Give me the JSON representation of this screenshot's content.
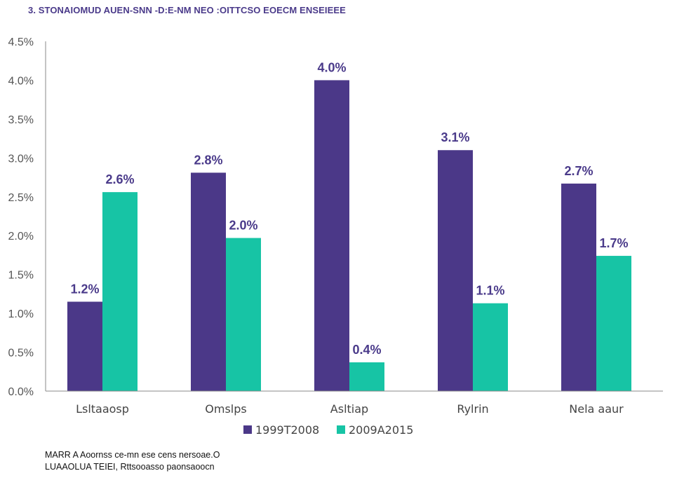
{
  "title": "3. STONAIOMUD AUEN-SNN -D:E-NM NEO :OITTCSO EOECM ENSEIEEE",
  "source_lines": [
    "MARR A Aoornss ce-mn ese cens nersoae.O",
    "LUAAOLUA TEIEI, Rttsooasso paonsaoocn"
  ],
  "chart_data": {
    "type": "bar",
    "categories": [
      "Lsltaaosp",
      "Omslps",
      "Asltiap",
      "Rylrin",
      "Nela aaur"
    ],
    "series": [
      {
        "name": "1999T2008",
        "color": "#4b3888",
        "values": [
          1.15,
          2.81,
          4.0,
          3.1,
          2.67
        ]
      },
      {
        "name": "2009A2015",
        "color": "#17c4a5",
        "values": [
          2.56,
          1.97,
          0.37,
          1.13,
          1.74
        ]
      }
    ],
    "data_labels": [
      [
        "1.2%",
        "2.8%",
        "4.0%",
        "3.1%",
        "2.7%"
      ],
      [
        "2.6%",
        "2.0%",
        "0.4%",
        "1.1%",
        "1.7%"
      ]
    ],
    "y_ticks": [
      "0.0%",
      "0.5%",
      "1.0%",
      "1.5%",
      "2.0%",
      "2.5%",
      "3.0%",
      "3.5%",
      "4.0%",
      "4.5%"
    ],
    "ylim": [
      0,
      4.5
    ],
    "xlabel": "",
    "ylabel": "",
    "grid": false,
    "legend_position": "bottom",
    "data_label_color": "#4a3a8a"
  }
}
